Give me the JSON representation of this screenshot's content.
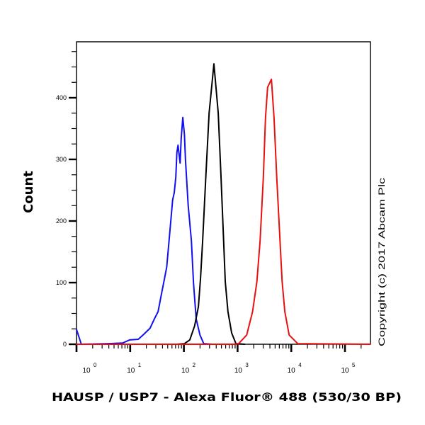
{
  "chart_data": {
    "type": "line",
    "subtype": "flow-cytometry-histogram",
    "title": "",
    "xlabel": "HAUSP / USP7 - Alexa Fluor® 488 (530/30 BP)",
    "ylabel": "Count",
    "x_scale": "log10",
    "xlim_log10": [
      0,
      5.47
    ],
    "ylim": [
      0,
      490
    ],
    "grid": false,
    "legend": null,
    "x_ticks": [
      {
        "base": "10",
        "exp": "0",
        "log": 0
      },
      {
        "base": "10",
        "exp": "1",
        "log": 1
      },
      {
        "base": "10",
        "exp": "2",
        "log": 2
      },
      {
        "base": "10",
        "exp": "3",
        "log": 3
      },
      {
        "base": "10",
        "exp": "4",
        "log": 4
      },
      {
        "base": "10",
        "exp": "5",
        "log": 5
      }
    ],
    "y_ticks": [
      0,
      100,
      200,
      300,
      400
    ],
    "annotation": "Copyright (c) 2017 Abcam Plc",
    "series": [
      {
        "name": "blue",
        "color": "#1010f0",
        "points_log10x_count": [
          [
            0.0,
            24
          ],
          [
            0.09,
            0
          ],
          [
            0.59,
            1
          ],
          [
            0.86,
            2
          ],
          [
            0.99,
            7
          ],
          [
            1.15,
            8
          ],
          [
            1.25,
            16
          ],
          [
            1.37,
            26
          ],
          [
            1.45,
            41
          ],
          [
            1.52,
            53
          ],
          [
            1.57,
            76
          ],
          [
            1.64,
            107
          ],
          [
            1.68,
            125
          ],
          [
            1.7,
            145
          ],
          [
            1.77,
            214
          ],
          [
            1.79,
            234
          ],
          [
            1.82,
            246
          ],
          [
            1.85,
            271
          ],
          [
            1.87,
            311
          ],
          [
            1.89,
            323
          ],
          [
            1.93,
            294
          ],
          [
            1.95,
            334
          ],
          [
            1.98,
            368
          ],
          [
            2.01,
            340
          ],
          [
            2.03,
            298
          ],
          [
            2.08,
            225
          ],
          [
            2.14,
            168
          ],
          [
            2.18,
            99
          ],
          [
            2.23,
            41
          ],
          [
            2.3,
            15
          ],
          [
            2.37,
            1
          ],
          [
            2.53,
            0
          ]
        ]
      },
      {
        "name": "black",
        "color": "#000000",
        "points_log10x_count": [
          [
            1.87,
            0
          ],
          [
            2.01,
            1
          ],
          [
            2.11,
            7
          ],
          [
            2.2,
            30
          ],
          [
            2.27,
            61
          ],
          [
            2.31,
            107
          ],
          [
            2.35,
            168
          ],
          [
            2.41,
            275
          ],
          [
            2.47,
            375
          ],
          [
            2.56,
            455
          ],
          [
            2.64,
            375
          ],
          [
            2.69,
            275
          ],
          [
            2.74,
            168
          ],
          [
            2.77,
            102
          ],
          [
            2.82,
            53
          ],
          [
            2.89,
            18
          ],
          [
            2.97,
            1
          ],
          [
            3.13,
            0
          ]
        ]
      },
      {
        "name": "red",
        "color": "#e81010",
        "points_log10x_count": [
          [
            0.0,
            0
          ],
          [
            2.93,
            0
          ],
          [
            3.02,
            1
          ],
          [
            3.17,
            15
          ],
          [
            3.28,
            53
          ],
          [
            3.36,
            102
          ],
          [
            3.42,
            168
          ],
          [
            3.48,
            271
          ],
          [
            3.52,
            367
          ],
          [
            3.56,
            417
          ],
          [
            3.63,
            430
          ],
          [
            3.68,
            367
          ],
          [
            3.73,
            271
          ],
          [
            3.79,
            168
          ],
          [
            3.83,
            102
          ],
          [
            3.88,
            53
          ],
          [
            3.96,
            15
          ],
          [
            4.12,
            1
          ],
          [
            5.47,
            0
          ]
        ]
      }
    ]
  }
}
